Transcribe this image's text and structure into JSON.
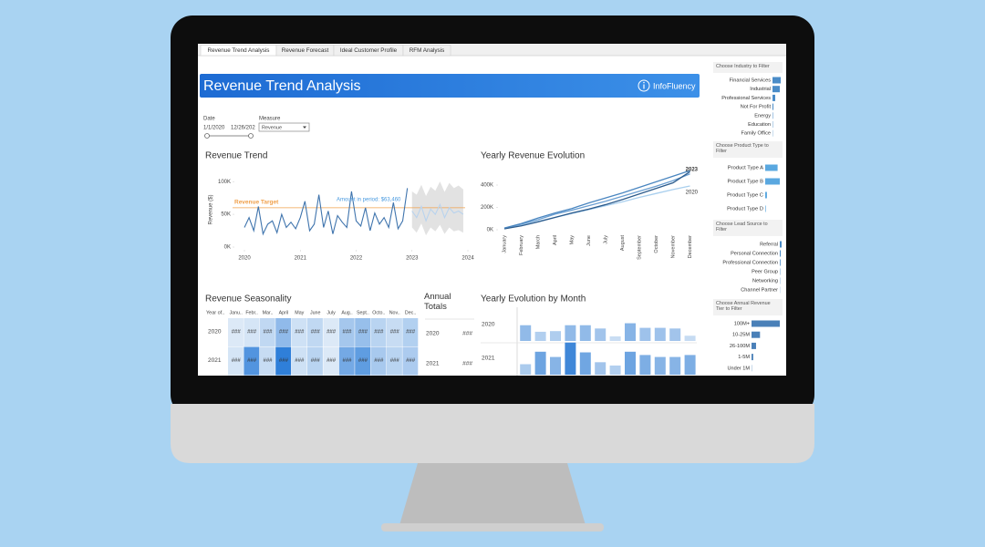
{
  "tabs": [
    "Revenue Trend Analysis",
    "Revenue Forecast",
    "Ideal Customer Profile",
    "RFM Analysis"
  ],
  "header": {
    "title": "Revenue Trend Analysis",
    "logo": "InfoFluency"
  },
  "controls": {
    "date_label": "Date",
    "date_start": "1/1/2020",
    "date_end": "12/26/202",
    "measure_label": "Measure",
    "measure_value": "Revenue"
  },
  "chart_data": [
    {
      "type": "line",
      "title": "Revenue Trend",
      "ylabel": "Revenue ($)",
      "x": [
        2020,
        2020.083,
        2020.167,
        2020.25,
        2020.333,
        2020.417,
        2020.5,
        2020.583,
        2020.667,
        2020.75,
        2020.833,
        2020.917,
        2021,
        2021.083,
        2021.167,
        2021.25,
        2021.333,
        2021.417,
        2021.5,
        2021.583,
        2021.667,
        2021.75,
        2021.833,
        2021.917,
        2022,
        2022.083,
        2022.167,
        2022.25,
        2022.333,
        2022.417,
        2022.5,
        2022.583,
        2022.667,
        2022.75,
        2022.833,
        2022.917
      ],
      "series": [
        {
          "color": "#3f74ad",
          "values": [
            30000,
            45000,
            25000,
            62000,
            20000,
            35000,
            40000,
            22000,
            50000,
            30000,
            38000,
            28000,
            45000,
            70000,
            25000,
            35000,
            80000,
            30000,
            55000,
            20000,
            48000,
            38000,
            30000,
            85000,
            40000,
            32000,
            60000,
            25000,
            52000,
            35000,
            45000,
            30000,
            68000,
            28000,
            40000,
            90000
          ]
        }
      ],
      "forecast": {
        "color": "#b9d3ee",
        "band_color": "#e2e2e2",
        "x": [
          2023,
          2023.083,
          2023.167,
          2023.25,
          2023.333,
          2023.417,
          2023.5,
          2023.583,
          2023.667,
          2023.75,
          2023.833,
          2023.917
        ],
        "values": [
          55000,
          45000,
          62000,
          40000,
          58000,
          50000,
          65000,
          45000,
          60000,
          52000,
          55000,
          50000
        ],
        "upper": [
          85000,
          80000,
          95000,
          78000,
          92000,
          86000,
          100000,
          84000,
          98000,
          90000,
          94000,
          88000
        ],
        "lower": [
          30000,
          22000,
          36000,
          18000,
          30000,
          24000,
          34000,
          20000,
          30000,
          24000,
          26000,
          22000
        ]
      },
      "target": {
        "label": "Revenue Target",
        "value": 60000,
        "color": "#f0a04b"
      },
      "annotation": "Amount in period: $63,460",
      "xlim": [
        2020,
        2024
      ],
      "xticks": [
        2020,
        2021,
        2022,
        2023,
        2024
      ],
      "ylim": [
        0,
        110000
      ],
      "yticks": [
        {
          "value": 0,
          "label": "0K"
        },
        {
          "value": 50000,
          "label": "50K"
        },
        {
          "value": 100000,
          "label": "100K"
        }
      ]
    },
    {
      "type": "line",
      "title": "Yearly Revenue Evolution",
      "categories": [
        "January",
        "February",
        "March",
        "April",
        "May",
        "June",
        "July",
        "August",
        "September",
        "October",
        "November",
        "December"
      ],
      "series": [
        {
          "name": "2020",
          "color": "#a9cfee",
          "values": [
            10000,
            40000,
            75000,
            110000,
            145000,
            180000,
            215000,
            250000,
            290000,
            325000,
            360000,
            392000
          ]
        },
        {
          "color": "#6b9fd2",
          "values": [
            12000,
            50000,
            90000,
            140000,
            175000,
            215000,
            255000,
            300000,
            345000,
            390000,
            440000,
            500000
          ]
        },
        {
          "color": "#2c5b8c",
          "values": [
            8000,
            35000,
            70000,
            110000,
            150000,
            185000,
            225000,
            270000,
            320000,
            370000,
            420000,
            520000
          ]
        },
        {
          "name": "2023",
          "color": "#4a86c0",
          "values": [
            15000,
            55000,
            105000,
            150000,
            190000,
            240000,
            285000,
            330000,
            380000,
            430000,
            480000,
            530000
          ]
        }
      ],
      "ylim": [
        0,
        560000
      ],
      "yticks": [
        {
          "value": 0,
          "label": "0K"
        },
        {
          "value": 200000,
          "label": "200K"
        },
        {
          "value": 400000,
          "label": "400K"
        }
      ]
    },
    {
      "type": "heatmap",
      "title": "Revenue Seasonality",
      "row_header": "Year of..",
      "columns": [
        "Janu..",
        "Febr..",
        "Mar..",
        "April",
        "May",
        "June",
        "July",
        "Aug..",
        "Sept..",
        "Octo..",
        "Nov..",
        "Dec.."
      ],
      "rows": [
        "2020",
        "2021"
      ],
      "values": [
        [
          30,
          32,
          38,
          52,
          34,
          38,
          30,
          46,
          50,
          40,
          36,
          42
        ],
        [
          32,
          70,
          36,
          80,
          34,
          40,
          30,
          60,
          66,
          45,
          40,
          44
        ]
      ],
      "value_label": "###",
      "color_low": "#dce9f7",
      "color_high": "#2f7fd9"
    },
    {
      "type": "bar",
      "title": "Yearly Evolution by Month",
      "series": [
        {
          "name": "2020",
          "values": [
            48,
            28,
            30,
            48,
            48,
            38,
            14,
            54,
            40,
            40,
            38,
            16
          ]
        },
        {
          "name": "2021",
          "values": [
            32,
            70,
            54,
            98,
            68,
            38,
            28,
            70,
            60,
            54,
            54,
            60
          ]
        }
      ],
      "ylim": [
        0,
        100
      ],
      "color_low": "#c9ddf3",
      "color_high": "#3f87d8"
    }
  ],
  "annual_totals": {
    "title": "Annual Totals",
    "rows": [
      {
        "year": "2020",
        "total": "###"
      },
      {
        "year": "2021",
        "total": "###"
      }
    ]
  },
  "filters": [
    {
      "title": "Choose Industry to Filter",
      "color": "#4a8cc8",
      "items": [
        "Financial Services",
        "Industrial",
        "Professional Services",
        "Not For Profit",
        "Energy",
        "Education",
        "Family Office"
      ],
      "values": [
        90,
        80,
        30,
        10,
        5,
        4,
        3
      ]
    },
    {
      "title": "Choose Product Type to Filter",
      "color": "#5aa8e0",
      "items": [
        "Product Type A",
        "Product Type B",
        "Product Type C",
        "Product Type D"
      ],
      "values": [
        85,
        100,
        12,
        4
      ]
    },
    {
      "title": "Choose Lead Source to Filter",
      "color": "#4a8cc8",
      "items": [
        "Referral",
        "Personal Connection",
        "Professional Connection",
        "Peer Group",
        "Networking",
        "Channel Partner"
      ],
      "values": [
        20,
        10,
        8,
        4,
        3,
        2
      ]
    },
    {
      "title": "Choose Annual Revenue Tier to Filter",
      "color": "#4a80b8",
      "items": [
        "100M+",
        "10-25M",
        "26-100M",
        "1-5M",
        "Under 1M"
      ],
      "values": [
        100,
        30,
        16,
        6,
        1
      ]
    }
  ]
}
